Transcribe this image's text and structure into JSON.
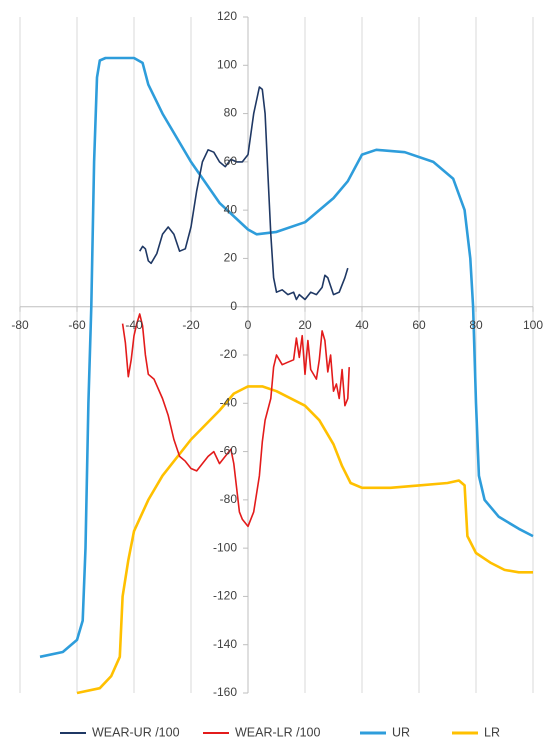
{
  "chart_data": {
    "type": "line",
    "xlim": [
      -80,
      100
    ],
    "ylim": [
      -160,
      120
    ],
    "xticks": [
      -80,
      -60,
      -40,
      -20,
      0,
      20,
      40,
      60,
      80,
      100
    ],
    "yticks": [
      120,
      100,
      80,
      60,
      40,
      20,
      0,
      -20,
      -40,
      -60,
      -80,
      -100,
      -120,
      -140,
      -160
    ],
    "grid": "x",
    "legend": "bottom",
    "series": [
      {
        "name": "WEAR-UR /100",
        "color": "#1f3864",
        "x": [
          -38,
          -37,
          -36,
          -35,
          -34,
          -32,
          -30,
          -28,
          -26,
          -24,
          -22,
          -20,
          -18,
          -16,
          -14,
          -12,
          -10,
          -8,
          -6,
          -4,
          -2,
          0,
          2,
          4,
          5,
          6,
          7,
          8,
          9,
          10,
          12,
          14,
          16,
          17,
          18,
          20,
          22,
          24,
          26,
          27,
          28,
          30,
          32,
          34,
          35
        ],
        "values": [
          23,
          25,
          24,
          19,
          18,
          22,
          30,
          33,
          30,
          23,
          24,
          33,
          48,
          60,
          65,
          64,
          60,
          58,
          61,
          60,
          60,
          63,
          80,
          91,
          90,
          80,
          55,
          30,
          12,
          6,
          7,
          5,
          6,
          3,
          5,
          3,
          6,
          5,
          8,
          13,
          12,
          5,
          6,
          12,
          16
        ]
      },
      {
        "name": "WEAR-LR /100",
        "color": "#e31b1b",
        "x": [
          -44,
          -43,
          -42,
          -41,
          -40,
          -39,
          -38,
          -37,
          -36,
          -35,
          -33,
          -30,
          -28,
          -26,
          -24,
          -22,
          -20,
          -18,
          -16,
          -14,
          -12,
          -10,
          -8,
          -6,
          -5,
          -4,
          -3,
          -2,
          0,
          2,
          4,
          5,
          6,
          8,
          9,
          10,
          12,
          14,
          16,
          17,
          18,
          19,
          20,
          21,
          22,
          24,
          25,
          26,
          27,
          28,
          29,
          30,
          31,
          32,
          33,
          34,
          35,
          35.5
        ],
        "values": [
          -7,
          -15,
          -29,
          -22,
          -12,
          -7,
          -3,
          -8,
          -20,
          -28,
          -30,
          -38,
          -45,
          -55,
          -62,
          -64,
          -67,
          -68,
          -65,
          -62,
          -60,
          -65,
          -62,
          -59,
          -65,
          -75,
          -85,
          -88,
          -91,
          -85,
          -70,
          -56,
          -47,
          -38,
          -25,
          -20,
          -24,
          -23,
          -22,
          -13,
          -21,
          -12,
          -28,
          -14,
          -26,
          -30,
          -22,
          -10,
          -14,
          -27,
          -20,
          -35,
          -32,
          -38,
          -26,
          -41,
          -38,
          -25
        ]
      },
      {
        "name": "UR",
        "color": "#2e9ddb",
        "x": [
          -73,
          -65,
          -60,
          -58,
          -57,
          -56,
          -55,
          -54,
          -53,
          -52,
          -50,
          -45,
          -40,
          -37,
          -35,
          -30,
          -20,
          -10,
          0,
          3,
          10,
          20,
          30,
          35,
          40,
          45,
          55,
          65,
          72,
          76,
          78,
          79,
          80,
          81,
          83,
          88,
          95,
          100
        ],
        "values": [
          -145,
          -143,
          -138,
          -130,
          -100,
          -40,
          0,
          60,
          95,
          102,
          103,
          103,
          103,
          101,
          92,
          80,
          60,
          43,
          32,
          30,
          31,
          35,
          45,
          52,
          63,
          65,
          64,
          60,
          53,
          40,
          20,
          0,
          -40,
          -70,
          -80,
          -87,
          -92,
          -95
        ]
      },
      {
        "name": "LR",
        "color": "#ffc000",
        "x": [
          -60,
          -52,
          -48,
          -45,
          -44,
          -42,
          -40,
          -35,
          -30,
          -20,
          -10,
          -5,
          0,
          5,
          10,
          20,
          25,
          30,
          33,
          36,
          40,
          50,
          60,
          70,
          74,
          76,
          77,
          80,
          85,
          90,
          95,
          100
        ],
        "values": [
          -160,
          -158,
          -153,
          -145,
          -120,
          -105,
          -93,
          -80,
          -70,
          -55,
          -43,
          -36,
          -33,
          -33,
          -35,
          -41,
          -47,
          -57,
          -66,
          -73,
          -75,
          -75,
          -74,
          -73,
          -72,
          -74,
          -95,
          -102,
          -106,
          -109,
          -110,
          -110
        ]
      }
    ]
  }
}
